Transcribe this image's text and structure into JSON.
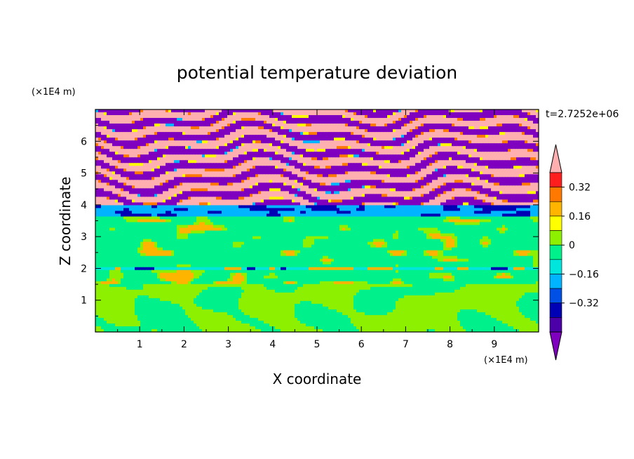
{
  "chart_data": {
    "type": "heatmap",
    "title": "potential temperature deviation",
    "xlabel": "X coordinate",
    "ylabel": "Z coordinate",
    "x_unit": "(×1E4 m)",
    "y_unit": "(×1E4 m)",
    "xlim": [
      0,
      10
    ],
    "ylim": [
      0,
      7
    ],
    "x_ticks": [
      "1",
      "2",
      "3",
      "4",
      "5",
      "6",
      "7",
      "8",
      "9"
    ],
    "y_ticks": [
      "1",
      "2",
      "3",
      "4",
      "5",
      "6"
    ],
    "time_label": "t=2.7252e+06",
    "colorbar": {
      "levels": [
        -0.48,
        -0.4,
        -0.32,
        -0.24,
        -0.16,
        -0.08,
        0,
        0.08,
        0.16,
        0.24,
        0.32,
        0.4,
        0.48
      ],
      "tick_labels": [
        "0.32",
        "0.16",
        "0",
        "−0.16",
        "−0.32"
      ],
      "tick_values": [
        0.32,
        0.16,
        0,
        -0.16,
        -0.32
      ],
      "colors": [
        "#7f00bf",
        "#4b00a8",
        "#0000b4",
        "#0050e6",
        "#00b4ff",
        "#00e6dc",
        "#00f08c",
        "#8cf000",
        "#ffff00",
        "#ffb400",
        "#ff7800",
        "#ff1e1e",
        "#ffafaf"
      ],
      "extend": "both"
    },
    "bands": [
      {
        "z": [
          0.0,
          1.5
        ],
        "base_level": 0.04,
        "note": "light green with green plumes"
      },
      {
        "z": [
          1.5,
          2.0
        ],
        "base_level": -0.02
      },
      {
        "z": [
          2.0,
          3.6
        ],
        "base_level": -0.02
      },
      {
        "z": [
          3.6,
          4.0
        ],
        "base_level": -0.2
      },
      {
        "z": [
          4.0,
          7.0
        ],
        "base_level": "alternating",
        "extremes": [
          0.48,
          -0.48
        ]
      }
    ]
  }
}
